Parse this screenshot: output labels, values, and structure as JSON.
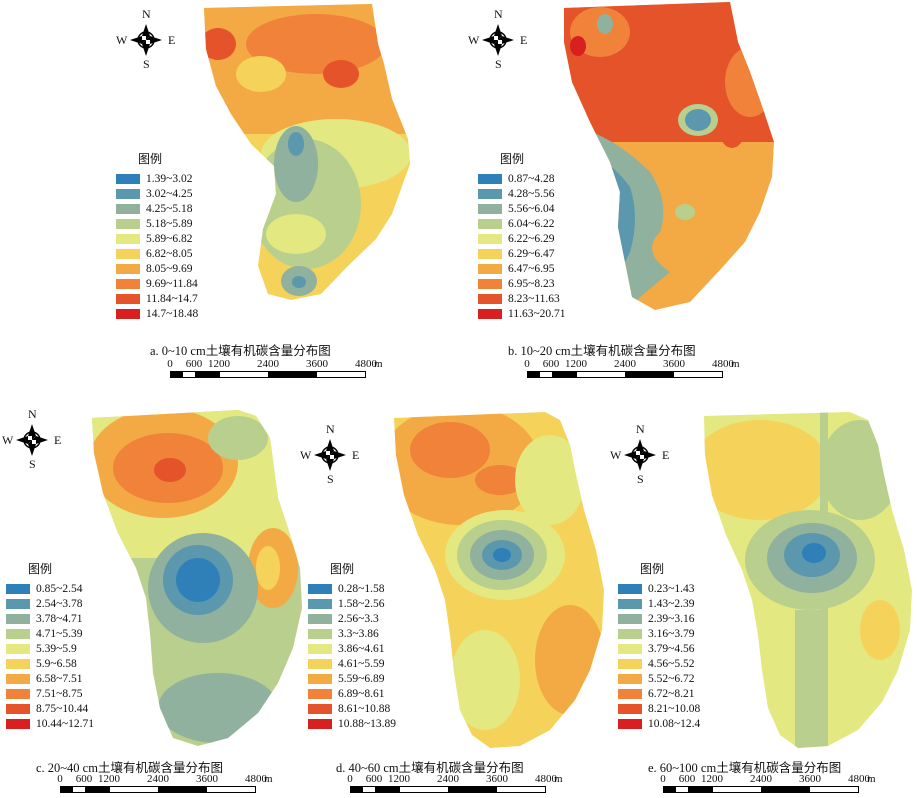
{
  "legend_title": "图例",
  "compass": {
    "n": "N",
    "s": "S",
    "e": "E",
    "w": "W"
  },
  "scale": {
    "ticks": [
      "0",
      "600",
      "1200",
      "2400",
      "3600",
      "4800"
    ],
    "unit": "m"
  },
  "colors": [
    "#2f7fb8",
    "#5c98ad",
    "#8fb19d",
    "#b9cf8d",
    "#e3e880",
    "#f5d35a",
    "#f4aa44",
    "#f0823a",
    "#e4532a",
    "#d7201f"
  ],
  "panels": [
    {
      "caption": "a. 0~10 cm土壤有机碳含量分布图",
      "ranges": [
        "1.39~3.02",
        "3.02~4.25",
        "4.25~5.18",
        "5.18~5.89",
        "5.89~6.82",
        "6.82~8.05",
        "8.05~9.69",
        "9.69~11.84",
        "11.84~14.7",
        "14.7~18.48"
      ]
    },
    {
      "caption": "b. 10~20 cm土壤有机碳含量分布图",
      "ranges": [
        "0.87~4.28",
        "4.28~5.56",
        "5.56~6.04",
        "6.04~6.22",
        "6.22~6.29",
        "6.29~6.47",
        "6.47~6.95",
        "6.95~8.23",
        "8.23~11.63",
        "11.63~20.71"
      ]
    },
    {
      "caption": "c. 20~40 cm土壤有机碳含量分布图",
      "ranges": [
        "0.85~2.54",
        "2.54~3.78",
        "3.78~4.71",
        "4.71~5.39",
        "5.39~5.9",
        "5.9~6.58",
        "6.58~7.51",
        "7.51~8.75",
        "8.75~10.44",
        "10.44~12.71"
      ]
    },
    {
      "caption": "d. 40~60 cm土壤有机碳含量分布图",
      "ranges": [
        "0.28~1.58",
        "1.58~2.56",
        "2.56~3.3",
        "3.3~3.86",
        "3.86~4.61",
        "4.61~5.59",
        "5.59~6.89",
        "6.89~8.61",
        "8.61~10.88",
        "10.88~13.89"
      ]
    },
    {
      "caption": "e. 60~100 cm土壤有机碳含量分布图",
      "ranges": [
        "0.23~1.43",
        "1.43~2.39",
        "2.39~3.16",
        "3.16~3.79",
        "3.79~4.56",
        "4.56~5.52",
        "5.52~6.72",
        "6.72~8.21",
        "8.21~10.08",
        "10.08~12.4"
      ]
    }
  ]
}
